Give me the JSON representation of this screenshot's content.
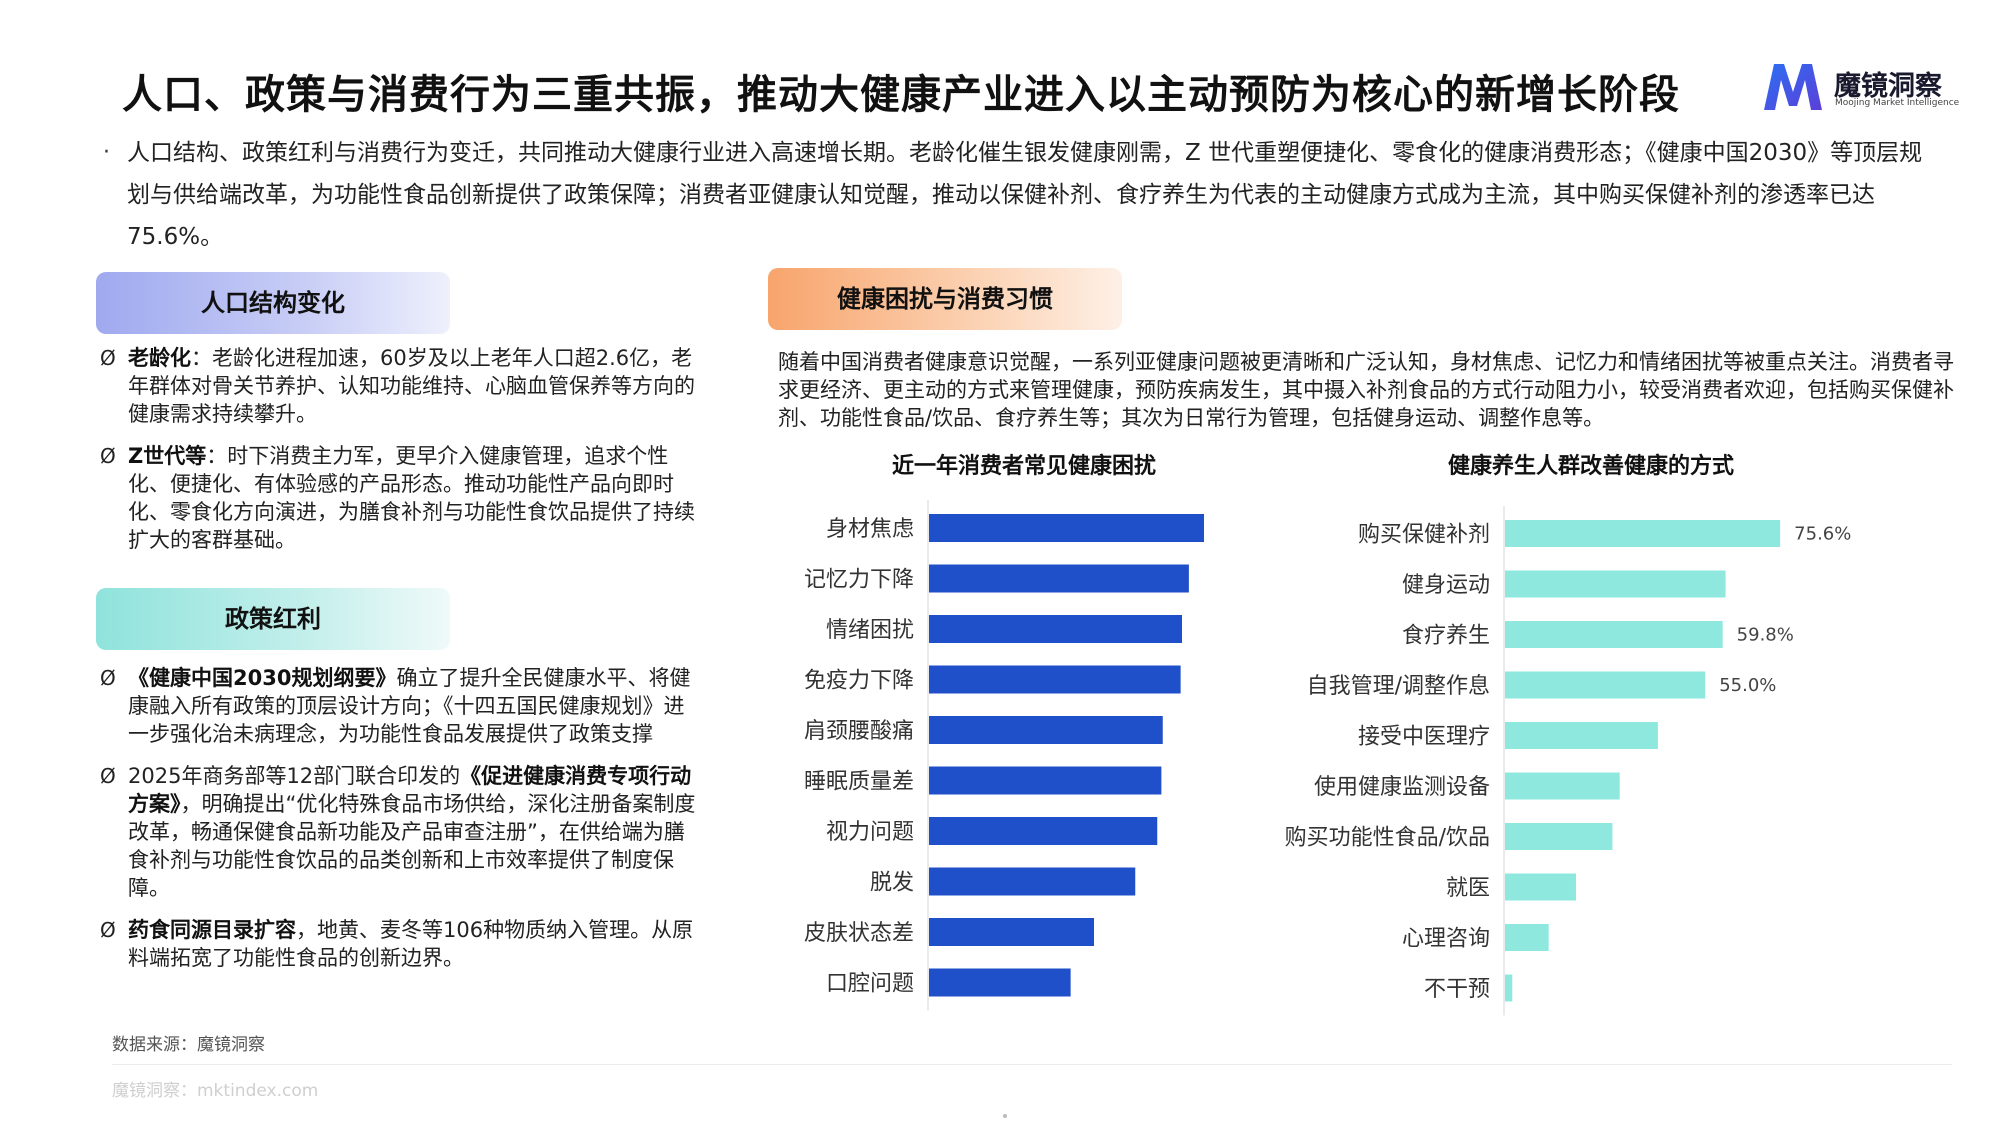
{
  "header": {
    "title": "人口、政策与消费行为三重共振，推动大健康产业进入以主动预防为核心的新增长阶段",
    "logo_cn": "魔镜洞察",
    "logo_en": "Moojing Market Intelligence"
  },
  "intro": {
    "bullet": "·",
    "text": "人口结构、政策红利与消费行为变迁，共同推动大健康行业进入高速增长期。老龄化催生银发健康刚需，Z 世代重塑便捷化、零食化的健康消费形态；《健康中国2030》等顶层规划与供给端改革，为功能性食品创新提供了政策保障；消费者亚健康认知觉醒，推动以保健补剂、食疗养生为代表的主动健康方式成为主流，其中购买保健补剂的渗透率已达 75.6%。"
  },
  "population": {
    "title": "人口结构变化",
    "items": [
      {
        "mark": "Ø",
        "bold": "老龄化",
        "text": "：老龄化进程加速，60岁及以上老年人口超2.6亿，老年群体对骨关节养护、认知功能维持、心脑血管保养等方向的健康需求持续攀升。"
      },
      {
        "mark": "Ø",
        "bold": "Z世代等",
        "text": "：时下消费主力军，更早介入健康管理，追求个性化、便捷化、有体验感的产品形态。推动功能性产品向即时化、零食化方向演进，为膳食补剂与功能性食饮品提供了持续扩大的客群基础。"
      }
    ]
  },
  "policy": {
    "title": "政策红利",
    "items": [
      {
        "mark": "Ø",
        "pre": "",
        "bold": "《健康中国2030规划纲要》",
        "text": "确立了提升全民健康水平、将健康融入所有政策的顶层设计方向；《十四五国民健康规划》进一步强化治未病理念，为功能性食品发展提供了政策支撑"
      },
      {
        "mark": "Ø",
        "pre": "2025年商务部等12部门联合印发的",
        "bold": "《促进健康消费专项行动方案》",
        "text": "，明确提出“优化特殊食品市场供给，深化注册备案制度改革，畅通保健食品新功能及产品审查注册”，在供给端为膳食补剂与功能性食饮品的品类创新和上市效率提供了制度保障。"
      },
      {
        "mark": "Ø",
        "pre": "",
        "bold": "药食同源目录扩容",
        "text": "，地黄、麦冬等106种物质纳入管理。从原料端拓宽了功能性食品的创新边界。"
      }
    ]
  },
  "health": {
    "title": "健康困扰与消费习惯",
    "text": "随着中国消费者健康意识觉醒，一系列亚健康问题被更清晰和广泛认知，身材焦虑、记忆力和情绪困扰等被重点关注。消费者寻求更经济、更主动的方式来管理健康，预防疾病发生，其中摄入补剂食品的方式行动阻力小，较受消费者欢迎，包括购买保健补剂、功能性食品/饮品、食疗养生等；其次为日常行为管理，包括健身运动、调整作息等。"
  },
  "chart_data": [
    {
      "type": "bar",
      "orientation": "horizontal",
      "title": "近一年消费者常见健康困扰",
      "categories": [
        "身材焦虑",
        "记忆力下降",
        "情绪困扰",
        "免疫力下降",
        "肩颈腰酸痛",
        "睡眠质量差",
        "视力问题",
        "脱发",
        "皮肤状态差",
        "口腔问题"
      ],
      "values": [
        100,
        94.5,
        92,
        91.5,
        85,
        84.5,
        83,
        75,
        60,
        51.5
      ],
      "xlim": [
        0,
        100
      ],
      "color": "#1f4fc9",
      "data_labels": []
    },
    {
      "type": "bar",
      "orientation": "horizontal",
      "title": "健康养生人群改善健康的方式",
      "categories": [
        "购买保健补剂",
        "健身运动",
        "食疗养生",
        "自我管理/调整作息",
        "接受中医理疗",
        "使用健康监测设备",
        "购买功能性食品/饮品",
        "就医",
        "心理咨询",
        "不干预"
      ],
      "values": [
        75.6,
        60.6,
        59.8,
        55.0,
        42.0,
        31.5,
        29.5,
        19.5,
        12.0,
        2.0
      ],
      "xlim": [
        0,
        100
      ],
      "color": "#8ee8de",
      "data_labels": [
        "75.6%",
        "",
        "59.8%",
        "55.0%",
        "",
        "",
        "",
        "",
        "",
        ""
      ]
    }
  ],
  "footer": {
    "source": "数据来源：魔镜洞察",
    "site": "魔镜洞察：mktindex.com"
  }
}
